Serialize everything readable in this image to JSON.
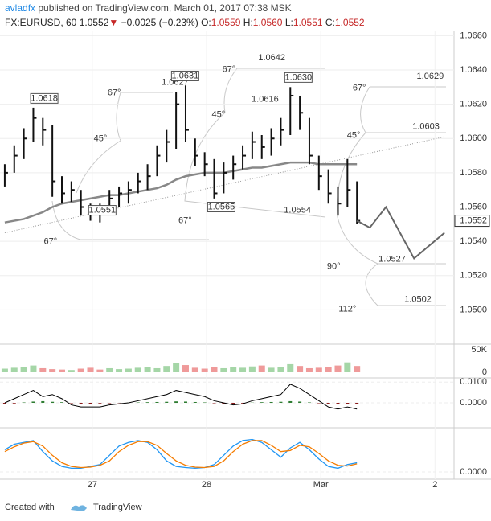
{
  "header": {
    "author": "avladfx",
    "published": "published on TradingView.com, March 01, 2017 07:38 MSK",
    "symbol": "FX:EURUSD, 60",
    "price": "1.0552",
    "arrow": "▼",
    "change": "−0.0025 (−0.23%)",
    "o_label": "O:",
    "o": "1.0559",
    "h_label": "H:",
    "h": "1.0560",
    "l_label": "L:",
    "l": "1.0551",
    "c_label": "C:",
    "c": "1.0552"
  },
  "chart_data": {
    "type": "ohlc",
    "xlim": [
      0,
      95.4
    ],
    "xticks": [
      {
        "value": 19.4,
        "label": "27"
      },
      {
        "value": 43.4,
        "label": "28"
      },
      {
        "value": 67.4,
        "label": "Mar"
      },
      {
        "value": 91.4,
        "label": "2"
      }
    ],
    "ylim": [
      1.048,
      1.0663
    ],
    "yticks": [
      {
        "value": 1.05,
        "label": "1.0500"
      },
      {
        "value": 1.052,
        "label": "1.0520"
      },
      {
        "value": 1.054,
        "label": "1.0540"
      },
      {
        "value": 1.056,
        "label": "1.0560"
      },
      {
        "value": 1.058,
        "label": "1.0580"
      },
      {
        "value": 1.06,
        "label": "1.0600"
      },
      {
        "value": 1.062,
        "label": "1.0620"
      },
      {
        "value": 1.064,
        "label": "1.0640"
      },
      {
        "value": 1.066,
        "label": "1.0660"
      }
    ],
    "x": [
      1,
      3,
      5,
      7,
      9,
      11,
      13,
      15,
      17,
      19,
      21,
      23,
      25,
      27,
      29,
      31,
      33,
      35,
      37,
      39,
      41,
      43,
      45,
      47,
      49,
      51,
      53,
      55,
      57,
      59,
      61,
      63,
      65,
      67,
      69,
      71,
      73,
      75
    ],
    "high": [
      1.0585,
      1.0596,
      1.0606,
      1.0618,
      1.0612,
      1.0608,
      1.0578,
      1.0575,
      1.057,
      1.0562,
      1.0562,
      1.057,
      1.0572,
      1.0575,
      1.058,
      1.0585,
      1.0596,
      1.0605,
      1.0627,
      1.0631,
      1.06,
      1.0592,
      1.0588,
      1.0586,
      1.059,
      1.0596,
      1.0604,
      1.0602,
      1.0606,
      1.0612,
      1.063,
      1.0625,
      1.0612,
      1.059,
      1.0582,
      1.0572,
      1.0588,
      1.0575
    ],
    "low": [
      1.0572,
      1.058,
      1.0588,
      1.0598,
      1.0596,
      1.0566,
      1.0562,
      1.0563,
      1.0555,
      1.0552,
      1.0551,
      1.0556,
      1.056,
      1.0562,
      1.0568,
      1.057,
      1.0578,
      1.0586,
      1.0594,
      1.0598,
      1.0584,
      1.0578,
      1.0565,
      1.0568,
      1.0576,
      1.0582,
      1.0588,
      1.0588,
      1.059,
      1.0596,
      1.0602,
      1.0605,
      1.0585,
      1.057,
      1.0562,
      1.0555,
      1.056,
      1.055
    ],
    "close": [
      1.058,
      1.059,
      1.06,
      1.0612,
      1.0605,
      1.0575,
      1.0568,
      1.057,
      1.056,
      1.0557,
      1.0556,
      1.0565,
      1.0568,
      1.057,
      1.0575,
      1.0578,
      1.059,
      1.0598,
      1.062,
      1.0605,
      1.059,
      1.0585,
      1.0568,
      1.058,
      1.0585,
      1.059,
      1.0598,
      1.0595,
      1.06,
      1.0605,
      1.0625,
      1.0615,
      1.059,
      1.0578,
      1.0568,
      1.0562,
      1.057,
      1.0552
    ],
    "bar_color": "#111111",
    "ma": {
      "color": "#888888",
      "values": [
        1.0551,
        1.0552,
        1.0553,
        1.0555,
        1.0557,
        1.056,
        1.0562,
        1.0563,
        1.0564,
        1.0565,
        1.0566,
        1.0567,
        1.0567,
        1.0568,
        1.0569,
        1.057,
        1.0571,
        1.0573,
        1.0576,
        1.0578,
        1.0579,
        1.058,
        1.058,
        1.058,
        1.0581,
        1.0582,
        1.0583,
        1.0583,
        1.0584,
        1.0585,
        1.0586,
        1.0586,
        1.0586,
        1.0585,
        1.0585,
        1.0585,
        1.0585,
        1.0585
      ]
    },
    "trendline": {
      "color": "#999999",
      "x": [
        1,
        93.4
      ],
      "values": [
        1.0545,
        1.0601
      ]
    },
    "projection": {
      "color": "#666666",
      "x": [
        75,
        77.7,
        81.1,
        87,
        93.4
      ],
      "values": [
        1.0552,
        1.0548,
        1.056,
        1.053,
        1.0545
      ]
    },
    "last_price": 1.0552,
    "annotations": [
      {
        "text": "1.0618",
        "x": 9.3,
        "y": 1.06234,
        "boxed": true
      },
      {
        "text": "67°",
        "x": 24.0,
        "y": 1.06267
      },
      {
        "text": "45°",
        "x": 21.1,
        "y": 1.05999
      },
      {
        "text": "67°",
        "x": 10.6,
        "y": 1.05398
      },
      {
        "text": "1.0551",
        "x": 21.5,
        "y": 1.05581,
        "boxed": true
      },
      {
        "text": "1.0627",
        "x": 36.8,
        "y": 1.06328
      },
      {
        "text": "1.0631",
        "x": 38.9,
        "y": 1.06365,
        "boxed": true
      },
      {
        "text": "67°",
        "x": 48.1,
        "y": 1.06403
      },
      {
        "text": "45°",
        "x": 45.9,
        "y": 1.0614
      },
      {
        "text": "1.0616",
        "x": 55.7,
        "y": 1.06229
      },
      {
        "text": "1.0642",
        "x": 57.1,
        "y": 1.06469
      },
      {
        "text": "67°",
        "x": 38.9,
        "y": 1.0552
      },
      {
        "text": "1.0565",
        "x": 46.5,
        "y": 1.056,
        "boxed": true
      },
      {
        "text": "1.0554",
        "x": 62.5,
        "y": 1.05581
      },
      {
        "text": "1.0630",
        "x": 62.7,
        "y": 1.06356,
        "boxed": true
      },
      {
        "text": "67°",
        "x": 75.5,
        "y": 1.06295
      },
      {
        "text": "45°",
        "x": 74.3,
        "y": 1.06018
      },
      {
        "text": "1.0629",
        "x": 90.4,
        "y": 1.06361
      },
      {
        "text": "1.0603",
        "x": 89.5,
        "y": 1.0607
      },
      {
        "text": "90°",
        "x": 70.1,
        "y": 1.05253
      },
      {
        "text": "1.0527",
        "x": 82.4,
        "y": 1.05295
      },
      {
        "text": "112°",
        "x": 73.0,
        "y": 1.05004
      },
      {
        "text": "1.0502",
        "x": 87.8,
        "y": 1.0506
      }
    ],
    "volume": {
      "ylim": [
        -12500,
        62500
      ],
      "yticks": [
        {
          "value": 50000,
          "label": "50K"
        },
        0
      ],
      "up_color": "#a5d6a7",
      "down_color": "#ef9a9a",
      "values": [
        8000,
        10000,
        12000,
        15000,
        9000,
        7000,
        6000,
        5000,
        8000,
        10000,
        6000,
        9000,
        7000,
        8000,
        10000,
        12000,
        9000,
        14000,
        20000,
        16000,
        10000,
        8000,
        12000,
        9000,
        11000,
        10000,
        13000,
        15000,
        10000,
        12000,
        18000,
        14000,
        9000,
        10000,
        12000,
        15000,
        22000,
        14000
      ]
    },
    "macd": {
      "ylim": [
        -0.01206,
        0.01206
      ],
      "yticks": [
        {
          "value": 0.01,
          "label": "0.0100"
        },
        {
          "value": 0,
          "label": "0.0000"
        }
      ],
      "color": "#000000",
      "up_color": "#2e7d32",
      "down_color": "#8b1a1a",
      "values": [
        0,
        0.002,
        0.004,
        0.006,
        0.003,
        0.004,
        0.002,
        -0.001,
        -0.002,
        -0.002,
        -0.002,
        -0.001,
        -0.0005,
        0,
        0.001,
        0.002,
        0.003,
        0.004,
        0.006,
        0.005,
        0.004,
        0.003,
        0.001,
        0,
        -0.001,
        -0.0005,
        0.001,
        0.002,
        0.003,
        0.004,
        0.009,
        0.007,
        0.004,
        0.001,
        -0.002,
        -0.003,
        -0.002,
        -0.003
      ],
      "histogram": [
        -0.0004,
        -0.0003,
        0.0002,
        0.0006,
        0.0008,
        0.0005,
        0.0003,
        -0.0002,
        -0.0005,
        -0.0004,
        -0.0003,
        -0.0002,
        -0.0001,
        0.0001,
        0.0002,
        0.0003,
        0.0004,
        0.0005,
        0.0007,
        0.0006,
        0.0004,
        0.0002,
        -0.0002,
        -0.0004,
        -0.0005,
        -0.0003,
        0.0001,
        0.0003,
        0.0004,
        0.0005,
        0.0008,
        0.0006,
        0.0002,
        -0.0002,
        -0.0005,
        -0.0006,
        -0.0004,
        -0.0005
      ]
    },
    "stoch": {
      "ylim": [
        -19.6,
        119.6
      ],
      "yticks": [
        {
          "value": 0,
          "label": "0.0000"
        }
      ],
      "k_color": "#2196f3",
      "d_color": "#f57c00",
      "k": [
        60,
        75,
        80,
        85,
        55,
        30,
        15,
        10,
        10,
        15,
        20,
        45,
        70,
        80,
        85,
        80,
        60,
        30,
        15,
        12,
        10,
        12,
        20,
        45,
        70,
        85,
        88,
        80,
        60,
        40,
        65,
        80,
        60,
        35,
        15,
        10,
        20,
        25
      ],
      "d": [
        55,
        68,
        78,
        82,
        70,
        45,
        25,
        15,
        12,
        13,
        18,
        30,
        55,
        72,
        82,
        82,
        72,
        50,
        30,
        18,
        13,
        12,
        15,
        30,
        55,
        75,
        85,
        85,
        72,
        55,
        58,
        72,
        68,
        50,
        30,
        18,
        16,
        22
      ]
    }
  },
  "footer": {
    "created": "Created with",
    "brand": "TradingView"
  }
}
